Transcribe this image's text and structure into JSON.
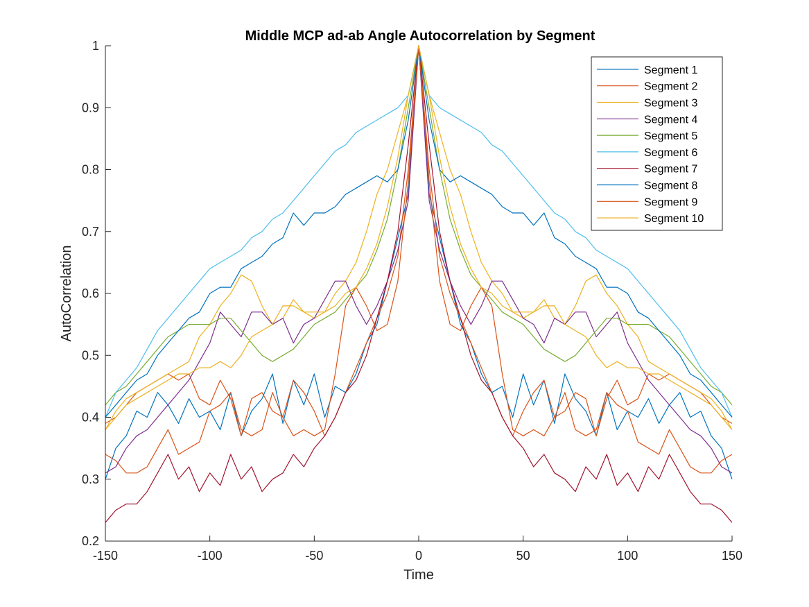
{
  "chart_data": {
    "type": "line",
    "title": "Middle MCP ad-ab Angle Autocorrelation by Segment",
    "xlabel": "Time",
    "ylabel": "AutoCorrelation",
    "xlim": [
      -150,
      150
    ],
    "ylim": [
      0.2,
      1
    ],
    "xticks": [
      -150,
      -100,
      -50,
      0,
      50,
      100,
      150
    ],
    "yticks": [
      0.2,
      0.3,
      0.4,
      0.5,
      0.6,
      0.7,
      0.8,
      0.9,
      1
    ],
    "grid": false,
    "legend_position": "top-right",
    "symmetric_about_zero": true,
    "x_positive": [
      0,
      5,
      10,
      15,
      20,
      25,
      30,
      35,
      40,
      45,
      50,
      55,
      60,
      65,
      70,
      75,
      80,
      85,
      90,
      95,
      100,
      105,
      110,
      115,
      120,
      125,
      130,
      135,
      140,
      145,
      150
    ],
    "series": [
      {
        "name": "Segment 1",
        "color": "#0072BD",
        "values": [
          1.0,
          0.76,
          0.69,
          0.62,
          0.55,
          0.52,
          0.47,
          0.44,
          0.45,
          0.4,
          0.47,
          0.42,
          0.46,
          0.39,
          0.47,
          0.43,
          0.41,
          0.37,
          0.44,
          0.38,
          0.41,
          0.4,
          0.43,
          0.39,
          0.42,
          0.44,
          0.4,
          0.41,
          0.37,
          0.35,
          0.3
        ]
      },
      {
        "name": "Segment 2",
        "color": "#D95319",
        "values": [
          1.0,
          0.8,
          0.66,
          0.6,
          0.56,
          0.52,
          0.48,
          0.44,
          0.4,
          0.37,
          0.41,
          0.44,
          0.46,
          0.4,
          0.41,
          0.44,
          0.43,
          0.37,
          0.43,
          0.46,
          0.42,
          0.43,
          0.47,
          0.46,
          0.47,
          0.46,
          0.45,
          0.44,
          0.42,
          0.4,
          0.39
        ]
      },
      {
        "name": "Segment 3",
        "color": "#EDB120",
        "values": [
          1.0,
          0.92,
          0.86,
          0.8,
          0.76,
          0.7,
          0.65,
          0.62,
          0.6,
          0.57,
          0.56,
          0.57,
          0.59,
          0.56,
          0.55,
          0.58,
          0.62,
          0.63,
          0.6,
          0.58,
          0.55,
          0.53,
          0.49,
          0.48,
          0.47,
          0.46,
          0.45,
          0.44,
          0.43,
          0.41,
          0.38
        ]
      },
      {
        "name": "Segment 4",
        "color": "#7E2F8E",
        "values": [
          1.0,
          0.75,
          0.67,
          0.62,
          0.58,
          0.55,
          0.58,
          0.62,
          0.62,
          0.59,
          0.56,
          0.55,
          0.52,
          0.56,
          0.55,
          0.57,
          0.57,
          0.53,
          0.55,
          0.57,
          0.52,
          0.49,
          0.46,
          0.44,
          0.42,
          0.4,
          0.38,
          0.37,
          0.35,
          0.32,
          0.31
        ]
      },
      {
        "name": "Segment 5",
        "color": "#77AC30",
        "values": [
          1.0,
          0.9,
          0.8,
          0.72,
          0.67,
          0.63,
          0.61,
          0.59,
          0.57,
          0.56,
          0.55,
          0.53,
          0.51,
          0.5,
          0.49,
          0.5,
          0.52,
          0.54,
          0.56,
          0.56,
          0.55,
          0.55,
          0.55,
          0.54,
          0.53,
          0.51,
          0.49,
          0.47,
          0.45,
          0.44,
          0.42
        ]
      },
      {
        "name": "Segment 6",
        "color": "#4DBEEE",
        "values": [
          1.0,
          0.92,
          0.9,
          0.89,
          0.88,
          0.87,
          0.86,
          0.84,
          0.83,
          0.81,
          0.79,
          0.77,
          0.75,
          0.73,
          0.72,
          0.7,
          0.69,
          0.67,
          0.66,
          0.65,
          0.64,
          0.62,
          0.6,
          0.58,
          0.56,
          0.54,
          0.51,
          0.48,
          0.46,
          0.44,
          0.4
        ]
      },
      {
        "name": "Segment 7",
        "color": "#A2142F",
        "values": [
          1.0,
          0.84,
          0.7,
          0.62,
          0.56,
          0.5,
          0.46,
          0.44,
          0.4,
          0.37,
          0.35,
          0.32,
          0.34,
          0.31,
          0.3,
          0.28,
          0.32,
          0.3,
          0.34,
          0.29,
          0.31,
          0.28,
          0.32,
          0.3,
          0.34,
          0.31,
          0.28,
          0.26,
          0.26,
          0.25,
          0.23
        ]
      },
      {
        "name": "Segment 8",
        "color": "#0072BD",
        "values": [
          1.0,
          0.88,
          0.8,
          0.78,
          0.79,
          0.78,
          0.77,
          0.76,
          0.74,
          0.73,
          0.73,
          0.71,
          0.73,
          0.69,
          0.68,
          0.66,
          0.65,
          0.64,
          0.61,
          0.61,
          0.6,
          0.57,
          0.56,
          0.54,
          0.52,
          0.5,
          0.47,
          0.46,
          0.44,
          0.42,
          0.4
        ]
      },
      {
        "name": "Segment 9",
        "color": "#D95319",
        "values": [
          1.0,
          0.78,
          0.62,
          0.55,
          0.54,
          0.58,
          0.61,
          0.58,
          0.47,
          0.38,
          0.37,
          0.38,
          0.37,
          0.4,
          0.44,
          0.38,
          0.37,
          0.38,
          0.44,
          0.42,
          0.41,
          0.36,
          0.35,
          0.34,
          0.38,
          0.35,
          0.32,
          0.31,
          0.31,
          0.33,
          0.34
        ]
      },
      {
        "name": "Segment 10",
        "color": "#EDB120",
        "values": [
          1.0,
          0.92,
          0.82,
          0.74,
          0.68,
          0.64,
          0.61,
          0.6,
          0.58,
          0.57,
          0.57,
          0.57,
          0.58,
          0.58,
          0.55,
          0.54,
          0.53,
          0.5,
          0.48,
          0.49,
          0.48,
          0.48,
          0.47,
          0.47,
          0.46,
          0.45,
          0.44,
          0.43,
          0.42,
          0.4,
          0.38
        ]
      }
    ]
  }
}
